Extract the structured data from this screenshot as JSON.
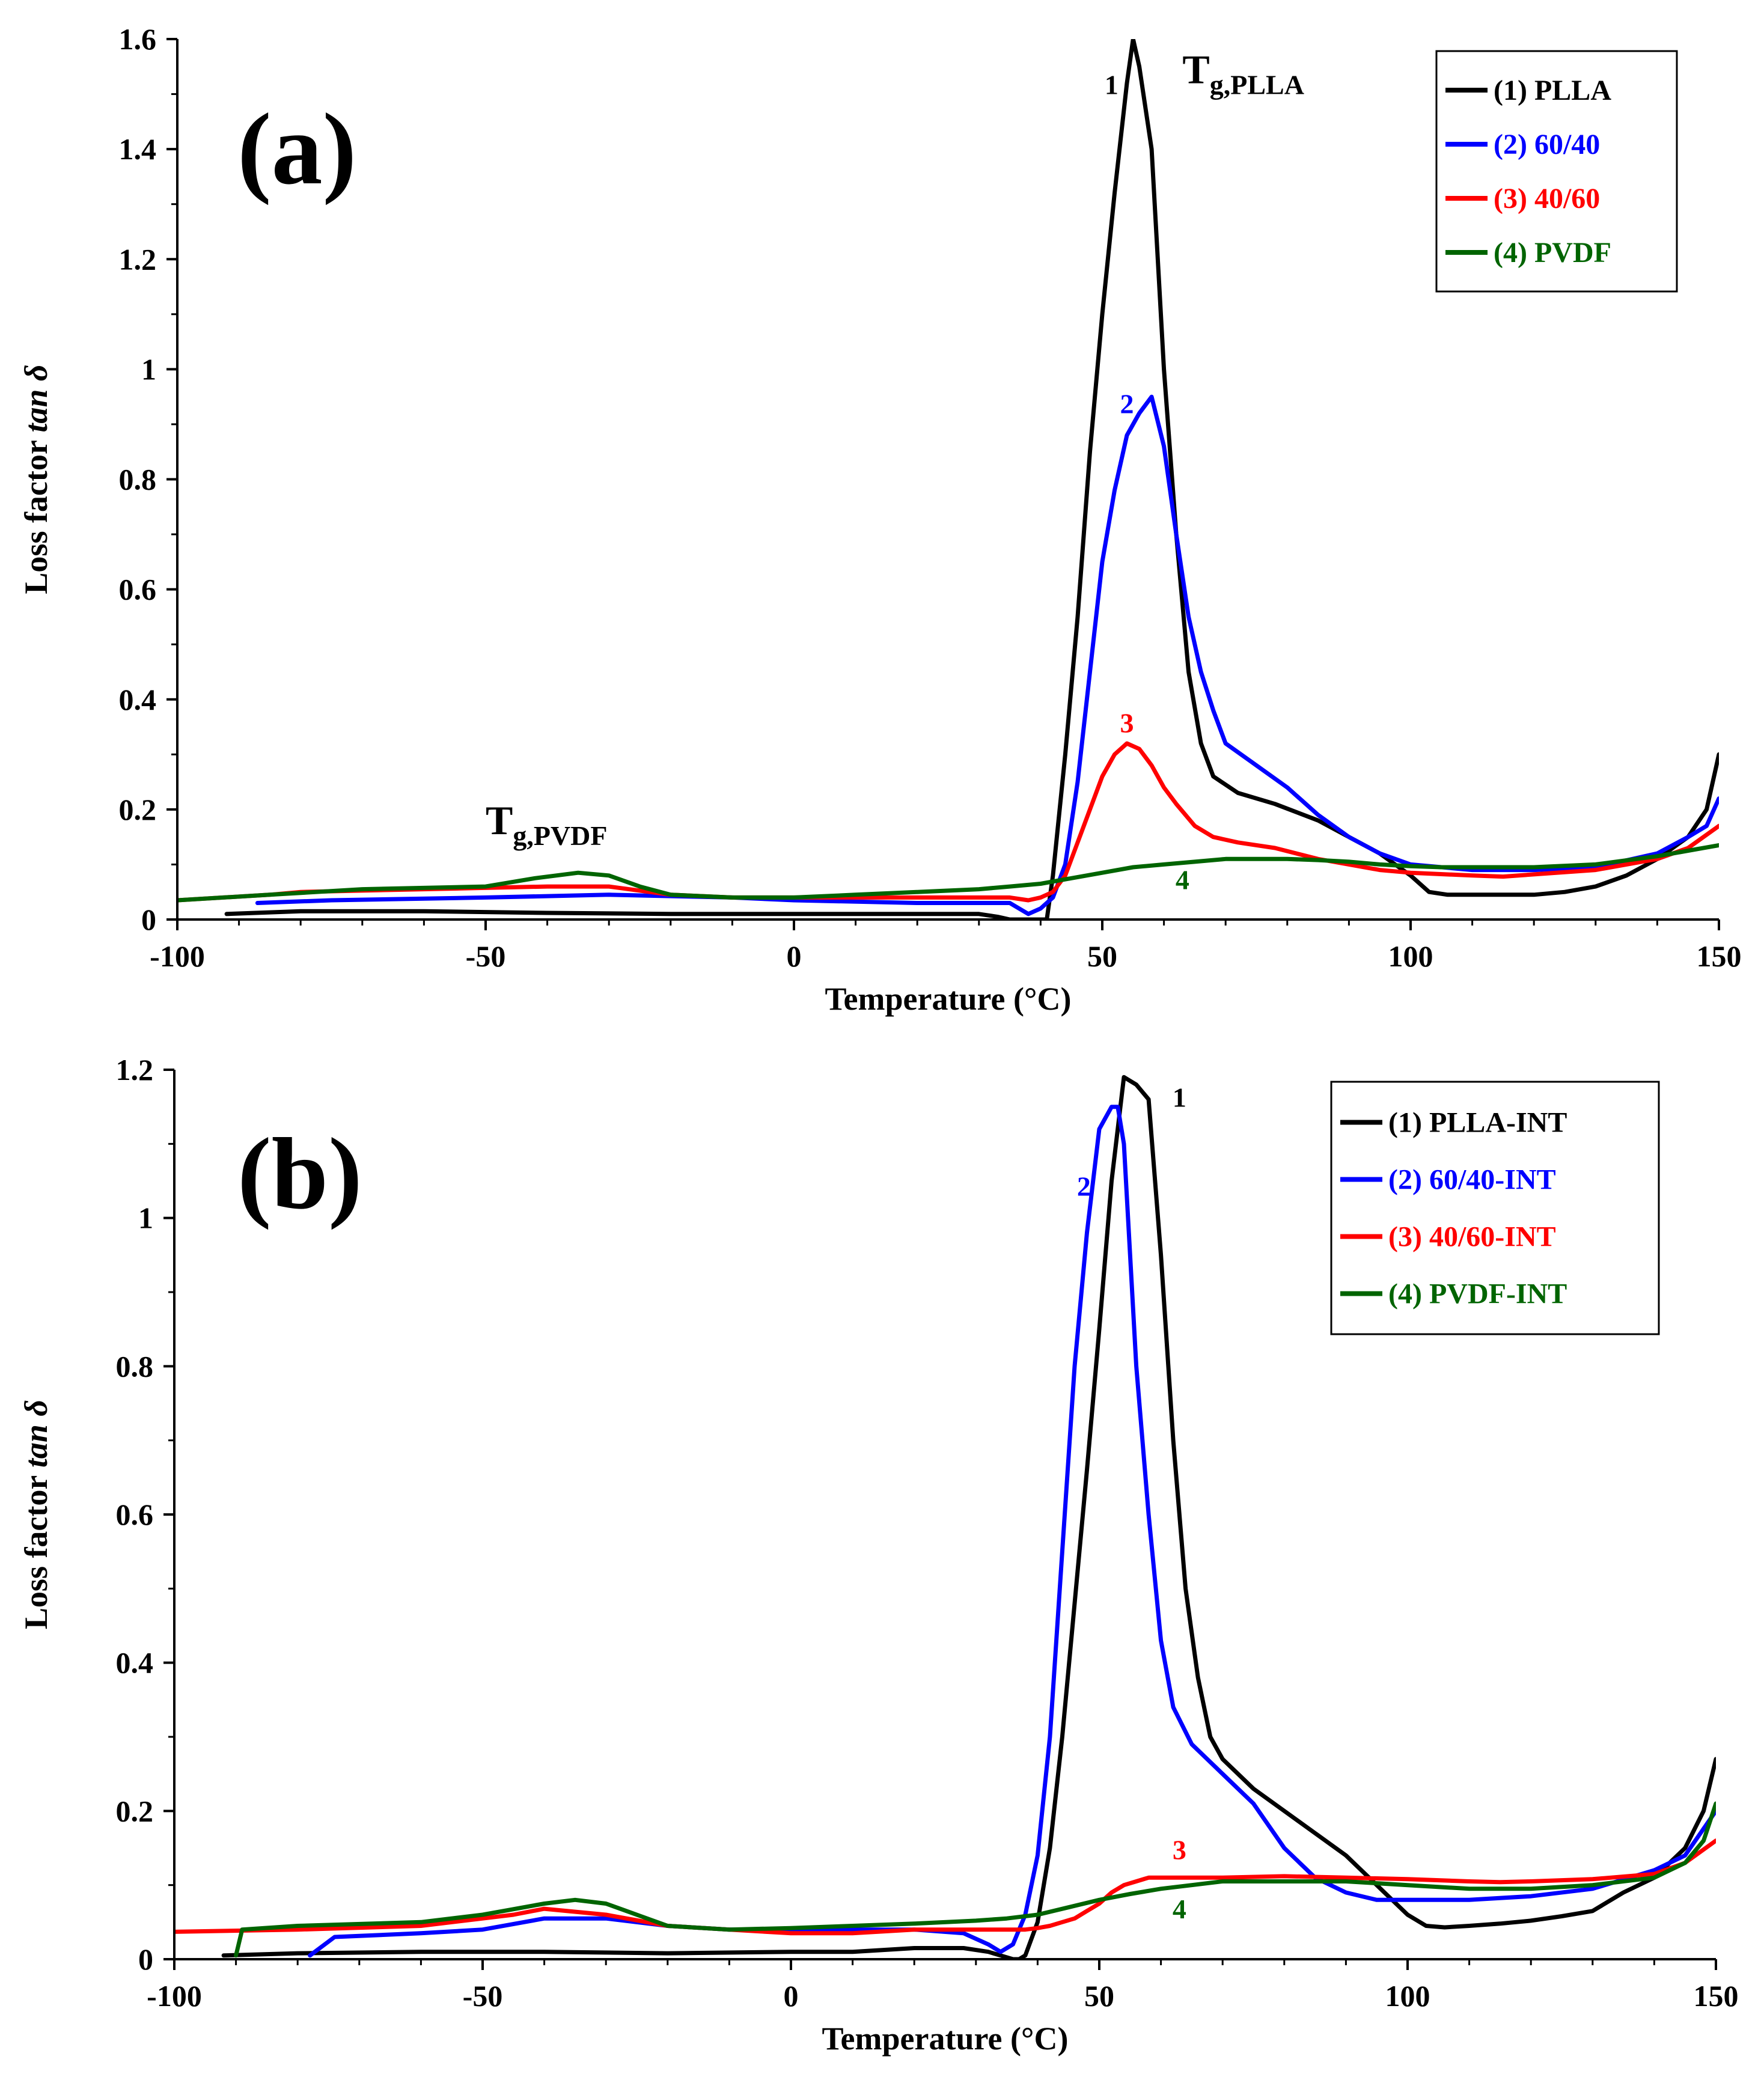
{
  "chart_data": [
    {
      "type": "line",
      "panel_label": "(a)",
      "xlabel": "Temperature (°C)",
      "ylabel_main": "Loss factor ",
      "ylabel_italic": "tan δ",
      "xlim": [
        -100,
        150
      ],
      "ylim": [
        0,
        1.6
      ],
      "xticks": [
        -100,
        -50,
        0,
        50,
        100,
        150
      ],
      "xtick_labels": [
        "-100",
        "-50",
        "0",
        "50",
        "100",
        "150"
      ],
      "yticks": [
        0,
        0.2,
        0.4,
        0.6,
        0.8,
        1.0,
        1.2,
        1.4,
        1.6
      ],
      "ytick_labels": [
        "0",
        "0.2",
        "0.4",
        "0.6",
        "0.8",
        "1",
        "1.2",
        "1.4",
        "1.6"
      ],
      "legend_position": "top-right",
      "series": [
        {
          "name": "(1) PLLA",
          "curve_label": "1",
          "color": "#000000",
          "x": [
            -92,
            -80,
            -60,
            -40,
            -20,
            0,
            10,
            20,
            30,
            33,
            35,
            38,
            40,
            41,
            42,
            44,
            46,
            48,
            50,
            52,
            54,
            55,
            56,
            58,
            60,
            62,
            64,
            66,
            68,
            72,
            78,
            85,
            90,
            95,
            100,
            103,
            106,
            110,
            115,
            120,
            125,
            130,
            135,
            140,
            145,
            148,
            150
          ],
          "y": [
            0.01,
            0.015,
            0.015,
            0.012,
            0.01,
            0.01,
            0.01,
            0.01,
            0.01,
            0.005,
            0,
            0,
            0,
            0,
            0.08,
            0.3,
            0.55,
            0.85,
            1.1,
            1.32,
            1.52,
            1.6,
            1.55,
            1.4,
            1.0,
            0.7,
            0.45,
            0.32,
            0.26,
            0.23,
            0.21,
            0.18,
            0.15,
            0.12,
            0.08,
            0.05,
            0.045,
            0.045,
            0.045,
            0.045,
            0.05,
            0.06,
            0.08,
            0.11,
            0.15,
            0.2,
            0.3
          ]
        },
        {
          "name": "(2) 60/40",
          "curve_label": "2",
          "color": "#0000ff",
          "x": [
            -87,
            -75,
            -50,
            -30,
            -10,
            0,
            20,
            30,
            35,
            38,
            40,
            42,
            44,
            46,
            48,
            50,
            52,
            54,
            56,
            58,
            60,
            62,
            64,
            66,
            68,
            70,
            75,
            80,
            85,
            90,
            95,
            100,
            110,
            120,
            130,
            140,
            145,
            148,
            150
          ],
          "y": [
            0.03,
            0.035,
            0.04,
            0.045,
            0.04,
            0.035,
            0.03,
            0.03,
            0.03,
            0.01,
            0.02,
            0.04,
            0.1,
            0.25,
            0.45,
            0.65,
            0.78,
            0.88,
            0.92,
            0.95,
            0.86,
            0.7,
            0.55,
            0.45,
            0.38,
            0.32,
            0.28,
            0.24,
            0.19,
            0.15,
            0.12,
            0.1,
            0.09,
            0.09,
            0.095,
            0.12,
            0.15,
            0.17,
            0.22
          ]
        },
        {
          "name": "(3) 40/60",
          "curve_label": "3",
          "color": "#ff0000",
          "x": [
            -100,
            -85,
            -80,
            -60,
            -40,
            -30,
            -20,
            -10,
            0,
            20,
            30,
            35,
            38,
            40,
            42,
            44,
            46,
            48,
            50,
            52,
            54,
            56,
            58,
            60,
            62,
            65,
            68,
            72,
            78,
            85,
            90,
            95,
            100,
            110,
            115,
            120,
            130,
            140,
            145,
            150
          ],
          "y": [
            0.035,
            0.045,
            0.05,
            0.055,
            0.06,
            0.06,
            0.045,
            0.04,
            0.04,
            0.04,
            0.04,
            0.04,
            0.035,
            0.04,
            0.05,
            0.08,
            0.14,
            0.2,
            0.26,
            0.3,
            0.32,
            0.31,
            0.28,
            0.24,
            0.21,
            0.17,
            0.15,
            0.14,
            0.13,
            0.11,
            0.1,
            0.09,
            0.085,
            0.08,
            0.078,
            0.082,
            0.09,
            0.11,
            0.13,
            0.17
          ]
        },
        {
          "name": "(4) PVDF",
          "curve_label": "4",
          "color": "#006400",
          "x": [
            -100,
            -85,
            -70,
            -50,
            -42,
            -35,
            -30,
            -25,
            -20,
            -10,
            0,
            10,
            20,
            30,
            35,
            40,
            45,
            50,
            55,
            60,
            65,
            70,
            75,
            80,
            85,
            90,
            95,
            100,
            105,
            110,
            120,
            130,
            140,
            145,
            150
          ],
          "y": [
            0.035,
            0.045,
            0.055,
            0.06,
            0.075,
            0.085,
            0.08,
            0.06,
            0.045,
            0.04,
            0.04,
            0.045,
            0.05,
            0.055,
            0.06,
            0.065,
            0.075,
            0.085,
            0.095,
            0.1,
            0.105,
            0.11,
            0.11,
            0.11,
            0.108,
            0.105,
            0.1,
            0.097,
            0.095,
            0.095,
            0.095,
            0.1,
            0.115,
            0.125,
            0.135
          ]
        }
      ],
      "annotations": [
        {
          "type": "tg",
          "main": "T",
          "sub": "g,PLLA",
          "x": 63,
          "y": 1.52
        },
        {
          "type": "tg",
          "main": "T",
          "sub": "g,PVDF",
          "x": -50,
          "y": 0.155
        }
      ],
      "curve_label_positions": [
        {
          "label": "1",
          "x": 51.5,
          "y": 1.5
        },
        {
          "label": "2",
          "x": 54,
          "y": 0.92
        },
        {
          "label": "3",
          "x": 54,
          "y": 0.34
        },
        {
          "label": "4",
          "x": 63,
          "y": 0.055
        }
      ]
    },
    {
      "type": "line",
      "panel_label": "(b)",
      "xlabel": "Temperature (°C)",
      "ylabel_main": "Loss factor ",
      "ylabel_italic": "tan δ",
      "xlim": [
        -100,
        150
      ],
      "ylim": [
        0,
        1.2
      ],
      "xticks": [
        -100,
        -50,
        0,
        50,
        100,
        150
      ],
      "xtick_labels": [
        "-100",
        "-50",
        "0",
        "50",
        "100",
        "150"
      ],
      "yticks": [
        0,
        0.2,
        0.4,
        0.6,
        0.8,
        1.0,
        1.2
      ],
      "ytick_labels": [
        "0",
        "0.2",
        "0.4",
        "0.6",
        "0.8",
        "1",
        "1.2"
      ],
      "legend_position": "top-right",
      "series": [
        {
          "name": "(1) PLLA-INT",
          "curve_label": "1",
          "color": "#000000",
          "x": [
            -92,
            -80,
            -60,
            -40,
            -20,
            0,
            10,
            20,
            28,
            32,
            34,
            36,
            37,
            38,
            40,
            42,
            44,
            46,
            48,
            50,
            52,
            54,
            56,
            58,
            60,
            62,
            64,
            66,
            68,
            70,
            75,
            80,
            85,
            90,
            95,
            100,
            103,
            106,
            110,
            115,
            120,
            125,
            130,
            135,
            140,
            145,
            148,
            150
          ],
          "y": [
            0.005,
            0.008,
            0.01,
            0.01,
            0.008,
            0.01,
            0.01,
            0.015,
            0.015,
            0.01,
            0.005,
            0,
            0,
            0.005,
            0.05,
            0.15,
            0.3,
            0.48,
            0.66,
            0.85,
            1.05,
            1.19,
            1.18,
            1.16,
            0.95,
            0.7,
            0.5,
            0.38,
            0.3,
            0.27,
            0.23,
            0.2,
            0.17,
            0.14,
            0.1,
            0.06,
            0.045,
            0.043,
            0.045,
            0.048,
            0.052,
            0.058,
            0.065,
            0.09,
            0.11,
            0.15,
            0.2,
            0.27
          ]
        },
        {
          "name": "(2) 60/40-INT",
          "curve_label": "2",
          "color": "#0000ff",
          "x": [
            -78,
            -74,
            -60,
            -50,
            -40,
            -30,
            -20,
            -10,
            0,
            10,
            20,
            28,
            32,
            34,
            36,
            38,
            40,
            42,
            44,
            46,
            48,
            50,
            52,
            53,
            54,
            56,
            58,
            60,
            62,
            65,
            70,
            75,
            80,
            85,
            90,
            95,
            100,
            110,
            120,
            130,
            140,
            145,
            150
          ],
          "y": [
            0.005,
            0.03,
            0.035,
            0.04,
            0.055,
            0.055,
            0.045,
            0.04,
            0.04,
            0.04,
            0.04,
            0.035,
            0.02,
            0.01,
            0.02,
            0.06,
            0.14,
            0.3,
            0.55,
            0.8,
            0.98,
            1.12,
            1.15,
            1.15,
            1.1,
            0.8,
            0.6,
            0.43,
            0.34,
            0.29,
            0.25,
            0.21,
            0.15,
            0.11,
            0.09,
            0.08,
            0.08,
            0.08,
            0.085,
            0.095,
            0.12,
            0.14,
            0.2
          ]
        },
        {
          "name": "(3) 40/60-INT",
          "curve_label": "3",
          "color": "#ff0000",
          "x": [
            -100,
            -80,
            -60,
            -45,
            -40,
            -30,
            -20,
            -10,
            0,
            10,
            20,
            30,
            35,
            38,
            40,
            42,
            44,
            46,
            48,
            50,
            52,
            54,
            56,
            58,
            60,
            65,
            70,
            80,
            90,
            100,
            110,
            115,
            120,
            130,
            140,
            145,
            150
          ],
          "y": [
            0.037,
            0.04,
            0.045,
            0.06,
            0.068,
            0.06,
            0.045,
            0.04,
            0.035,
            0.035,
            0.04,
            0.04,
            0.04,
            0.04,
            0.042,
            0.045,
            0.05,
            0.055,
            0.065,
            0.075,
            0.09,
            0.1,
            0.105,
            0.11,
            0.11,
            0.11,
            0.11,
            0.112,
            0.11,
            0.108,
            0.105,
            0.104,
            0.105,
            0.108,
            0.115,
            0.13,
            0.16
          ]
        },
        {
          "name": "(4) PVDF-INT",
          "curve_label": "4",
          "color": "#006400",
          "x": [
            -90,
            -89,
            -80,
            -60,
            -50,
            -40,
            -35,
            -30,
            -25,
            -20,
            -10,
            0,
            10,
            20,
            30,
            35,
            40,
            45,
            50,
            55,
            60,
            65,
            70,
            80,
            90,
            100,
            110,
            120,
            130,
            140,
            145,
            148,
            150
          ],
          "y": [
            0.005,
            0.04,
            0.045,
            0.05,
            0.06,
            0.075,
            0.08,
            0.075,
            0.06,
            0.045,
            0.04,
            0.042,
            0.045,
            0.048,
            0.052,
            0.055,
            0.06,
            0.07,
            0.08,
            0.088,
            0.095,
            0.1,
            0.105,
            0.105,
            0.105,
            0.1,
            0.095,
            0.095,
            0.1,
            0.11,
            0.13,
            0.16,
            0.21
          ]
        }
      ],
      "annotations": [],
      "curve_label_positions": [
        {
          "label": "1",
          "x": 63,
          "y": 1.15
        },
        {
          "label": "2",
          "x": 47.5,
          "y": 1.03
        },
        {
          "label": "3",
          "x": 63,
          "y": 0.135
        },
        {
          "label": "4",
          "x": 63,
          "y": 0.055
        }
      ]
    }
  ]
}
